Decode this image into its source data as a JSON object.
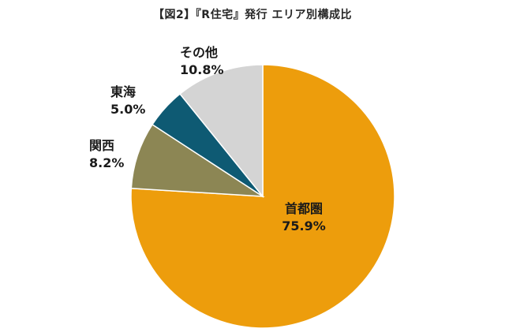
{
  "chart_data": {
    "type": "pie",
    "title": "【図2】『R住宅』発行 エリア別構成比",
    "slices": [
      {
        "name": "首都圏",
        "value": 75.9,
        "label": "75.9%",
        "color": "#ED9D0C"
      },
      {
        "name": "関西",
        "value": 8.2,
        "label": "8.2%",
        "color": "#8C8654"
      },
      {
        "name": "東海",
        "value": 5.0,
        "label": "5.0%",
        "color": "#0E5A73"
      },
      {
        "name": "その他",
        "value": 10.8,
        "label": "10.8%",
        "color": "#D4D4D4"
      }
    ],
    "start_angle_deg": 0,
    "direction": "clockwise",
    "legend": "none",
    "label_placement": "inside-first-outside-rest"
  }
}
